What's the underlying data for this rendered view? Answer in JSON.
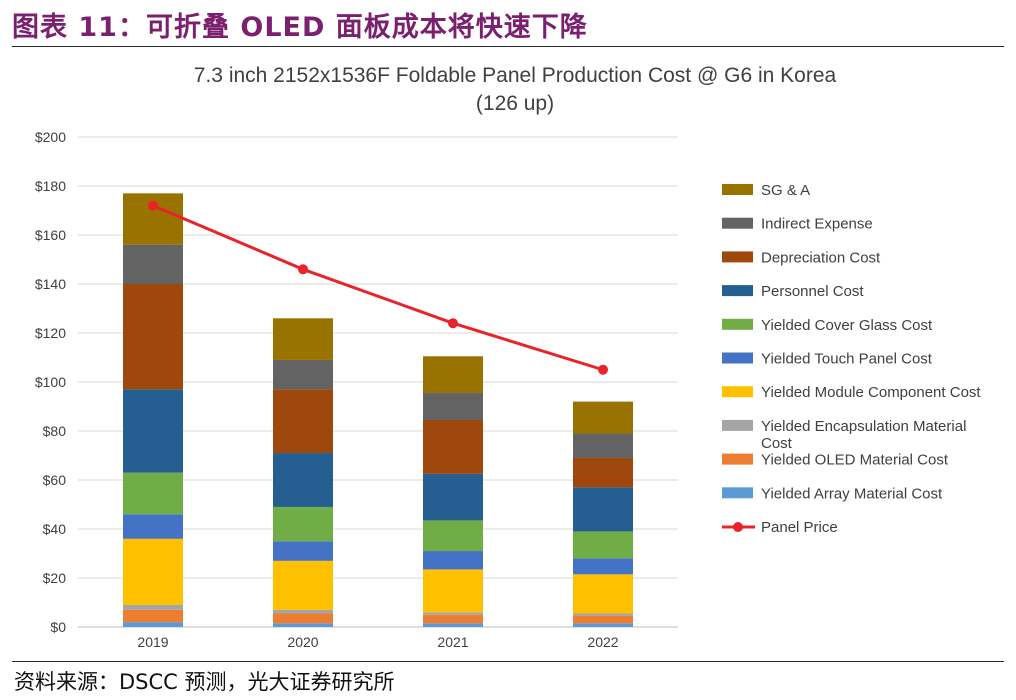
{
  "header": {
    "figure_label": "图表 11：可折叠 OLED 面板成本将快速下降"
  },
  "footer": {
    "source": "资料来源：DSCC 预测，光大证券研究所"
  },
  "chart_data": {
    "type": "bar",
    "stacked": true,
    "title": "7.3 inch 2152x1536F  Foldable Panel Production Cost @ G6  in Korea",
    "subtitle": "(126 up)",
    "categories": [
      "2019",
      "2020",
      "2021",
      "2022"
    ],
    "ylim": [
      0,
      200
    ],
    "yticks": [
      "$0",
      "$20",
      "$40",
      "$60",
      "$80",
      "$100",
      "$120",
      "$140",
      "$160",
      "$180",
      "$200"
    ],
    "grid": true,
    "legend_position": "right",
    "series": [
      {
        "name": "Yielded Array Material Cost",
        "color": "#5b9bd5",
        "values": [
          2,
          1.5,
          1.5,
          1.5
        ]
      },
      {
        "name": "Yielded OLED Material Cost",
        "color": "#ed7d31",
        "values": [
          5,
          4,
          3.5,
          3
        ]
      },
      {
        "name": "Yielded Encapsulation Material Cost",
        "color": "#a5a5a5",
        "values": [
          2,
          1.5,
          1,
          1
        ]
      },
      {
        "name": "Yielded Module Component Cost",
        "color": "#ffc000",
        "values": [
          27,
          20,
          17.5,
          16
        ]
      },
      {
        "name": "Yielded Touch Panel Cost",
        "color": "#4472c4",
        "values": [
          10,
          8,
          7.5,
          6.5
        ]
      },
      {
        "name": "Yielded Cover Glass Cost",
        "color": "#70ad47",
        "values": [
          17,
          14,
          12.5,
          11
        ]
      },
      {
        "name": "Personnel Cost",
        "color": "#255e91",
        "values": [
          34,
          22,
          19,
          18
        ]
      },
      {
        "name": "Depreciation Cost",
        "color": "#9e480e",
        "values": [
          43,
          26,
          22,
          12
        ]
      },
      {
        "name": "Indirect Expense",
        "color": "#636363",
        "values": [
          16,
          12,
          11,
          10
        ]
      },
      {
        "name": "SG & A",
        "color": "#997300",
        "values": [
          21,
          17,
          15,
          13
        ]
      }
    ],
    "line_series": {
      "name": "Panel Price",
      "color": "#e8242a",
      "values": [
        172,
        146,
        124,
        105
      ]
    }
  }
}
